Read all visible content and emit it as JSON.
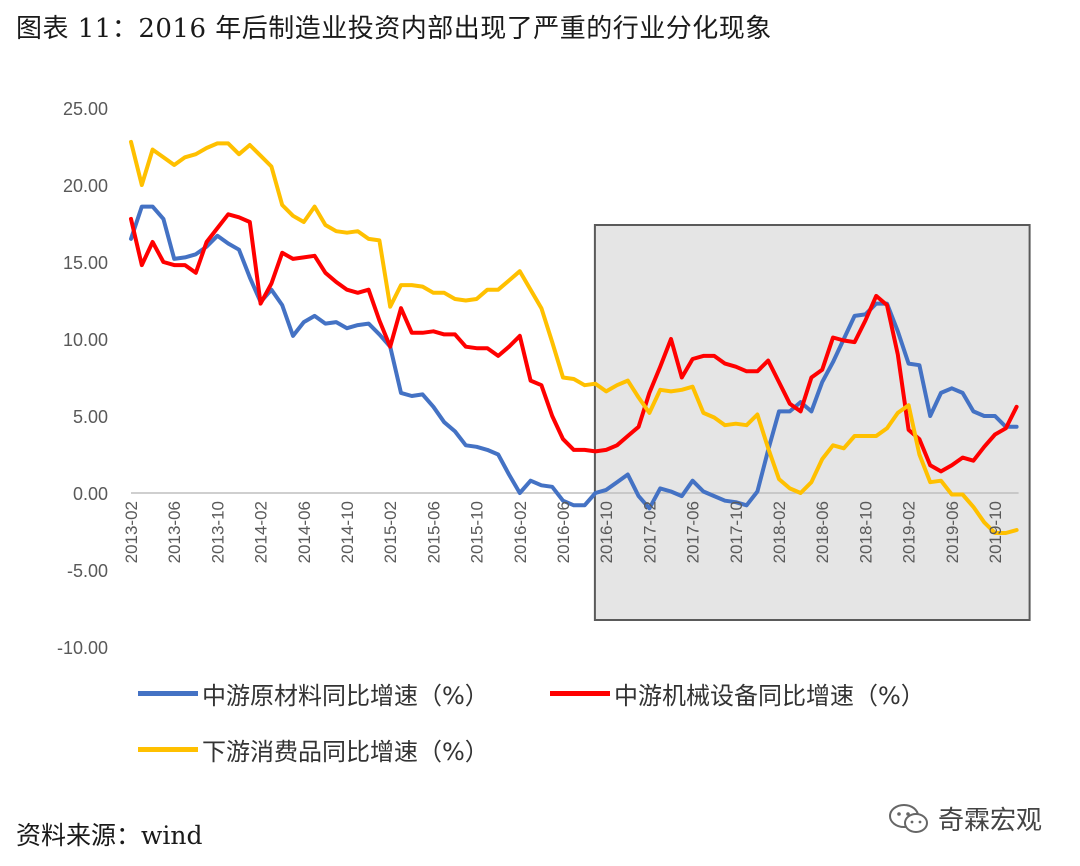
{
  "title": "图表 11：2016 年后制造业投资内部出现了严重的行业分化现象",
  "source": "资料来源：wind",
  "watermark": "奇霖宏观",
  "chart_data": {
    "type": "line",
    "ylim": [
      -10,
      25
    ],
    "y_ticks": [
      "25.00",
      "20.00",
      "15.00",
      "10.00",
      "5.00",
      "0.00",
      "-5.00",
      "-10.00"
    ],
    "x_ticks": [
      "2013-02",
      "2013-06",
      "2013-10",
      "2014-02",
      "2014-06",
      "2014-10",
      "2015-02",
      "2015-06",
      "2015-10",
      "2016-02",
      "2016-06",
      "2016-10",
      "2017-02",
      "2017-06",
      "2017-10",
      "2018-02",
      "2018-06",
      "2018-10",
      "2019-02",
      "2019-06",
      "2019-10"
    ],
    "x": [
      "2013-02",
      "2013-03",
      "2013-04",
      "2013-05",
      "2013-06",
      "2013-07",
      "2013-08",
      "2013-09",
      "2013-10",
      "2013-11",
      "2013-12",
      "2014-01",
      "2014-02",
      "2014-03",
      "2014-04",
      "2014-05",
      "2014-06",
      "2014-07",
      "2014-08",
      "2014-09",
      "2014-10",
      "2014-11",
      "2014-12",
      "2015-01",
      "2015-02",
      "2015-03",
      "2015-04",
      "2015-05",
      "2015-06",
      "2015-07",
      "2015-08",
      "2015-09",
      "2015-10",
      "2015-11",
      "2015-12",
      "2016-01",
      "2016-02",
      "2016-03",
      "2016-04",
      "2016-05",
      "2016-06",
      "2016-07",
      "2016-08",
      "2016-09",
      "2016-10",
      "2016-11",
      "2016-12",
      "2017-01",
      "2017-02",
      "2017-03",
      "2017-04",
      "2017-05",
      "2017-06",
      "2017-07",
      "2017-08",
      "2017-09",
      "2017-10",
      "2017-11",
      "2017-12",
      "2018-01",
      "2018-02",
      "2018-03",
      "2018-04",
      "2018-05",
      "2018-06",
      "2018-07",
      "2018-08",
      "2018-09",
      "2018-10",
      "2018-11",
      "2018-12",
      "2019-01",
      "2019-02",
      "2019-03",
      "2019-04",
      "2019-05",
      "2019-06",
      "2019-07",
      "2019-08",
      "2019-09",
      "2019-10",
      "2019-11",
      "2019-12"
    ],
    "highlight_range": [
      "2016-09",
      "2019-12"
    ],
    "series": [
      {
        "name": "中游原材料同比增速（%）",
        "color": "#4472C4",
        "values": [
          16.5,
          18.6,
          18.6,
          17.8,
          15.2,
          15.3,
          15.5,
          16.0,
          16.7,
          16.2,
          15.8,
          14.0,
          12.4,
          13.2,
          12.2,
          10.2,
          11.1,
          11.5,
          11.0,
          11.1,
          10.7,
          10.9,
          11.0,
          10.3,
          9.5,
          6.5,
          6.3,
          6.4,
          5.6,
          4.6,
          4.0,
          3.1,
          3.0,
          2.8,
          2.5,
          1.2,
          0.0,
          0.8,
          0.5,
          0.4,
          -0.5,
          -0.8,
          -0.8,
          0.0,
          0.2,
          0.7,
          1.2,
          -0.2,
          -1.0,
          0.3,
          0.1,
          -0.2,
          0.8,
          0.1,
          -0.2,
          -0.5,
          -0.6,
          -0.8,
          0.1,
          2.8,
          5.3,
          5.3,
          5.9,
          5.3,
          7.2,
          8.5,
          10.0,
          11.5,
          11.6,
          12.3,
          12.3,
          10.5,
          8.4,
          8.3,
          5.0,
          6.5,
          6.8,
          6.5,
          5.3,
          5.0,
          5.0,
          4.3,
          4.3
        ]
      },
      {
        "name": "中游机械设备同比增速（%）",
        "color": "#FF0000",
        "values": [
          17.8,
          14.8,
          16.3,
          15.0,
          14.8,
          14.8,
          14.3,
          16.3,
          17.2,
          18.1,
          17.9,
          17.6,
          12.3,
          13.6,
          15.6,
          15.2,
          15.3,
          15.4,
          14.3,
          13.7,
          13.2,
          13.0,
          13.2,
          11.2,
          9.5,
          12.0,
          10.4,
          10.4,
          10.5,
          10.3,
          10.3,
          9.5,
          9.4,
          9.4,
          8.9,
          9.5,
          10.2,
          7.3,
          7.0,
          5.0,
          3.5,
          2.8,
          2.8,
          2.7,
          2.8,
          3.1,
          3.7,
          4.3,
          6.5,
          8.2,
          10.0,
          7.5,
          8.7,
          8.9,
          8.9,
          8.4,
          8.2,
          7.9,
          7.9,
          8.6,
          7.2,
          5.8,
          5.3,
          7.5,
          8.0,
          10.1,
          9.9,
          9.8,
          11.2,
          12.8,
          12.2,
          9.0,
          4.1,
          3.5,
          1.8,
          1.4,
          1.8,
          2.3,
          2.1,
          3.0,
          3.8,
          4.2,
          5.6
        ]
      },
      {
        "name": "下游消费品同比增速（%）",
        "color": "#FFC000",
        "values": [
          22.8,
          20.0,
          22.3,
          21.8,
          21.3,
          21.8,
          22.0,
          22.4,
          22.7,
          22.7,
          22.0,
          22.6,
          21.9,
          21.2,
          18.7,
          18.0,
          17.6,
          18.6,
          17.4,
          17.0,
          16.9,
          17.0,
          16.5,
          16.4,
          12.1,
          13.5,
          13.5,
          13.4,
          13.0,
          13.0,
          12.6,
          12.5,
          12.6,
          13.2,
          13.2,
          13.8,
          14.4,
          13.2,
          12.0,
          9.8,
          7.5,
          7.4,
          7.0,
          7.1,
          6.6,
          7.0,
          7.3,
          6.2,
          5.2,
          6.7,
          6.6,
          6.7,
          6.9,
          5.2,
          4.9,
          4.4,
          4.5,
          4.4,
          5.1,
          2.9,
          0.9,
          0.3,
          0.0,
          0.7,
          2.2,
          3.1,
          2.9,
          3.7,
          3.7,
          3.7,
          4.2,
          5.2,
          5.7,
          2.5,
          0.7,
          0.8,
          -0.1,
          -0.1,
          -0.9,
          -1.9,
          -2.6,
          -2.6,
          -2.4
        ]
      }
    ]
  }
}
